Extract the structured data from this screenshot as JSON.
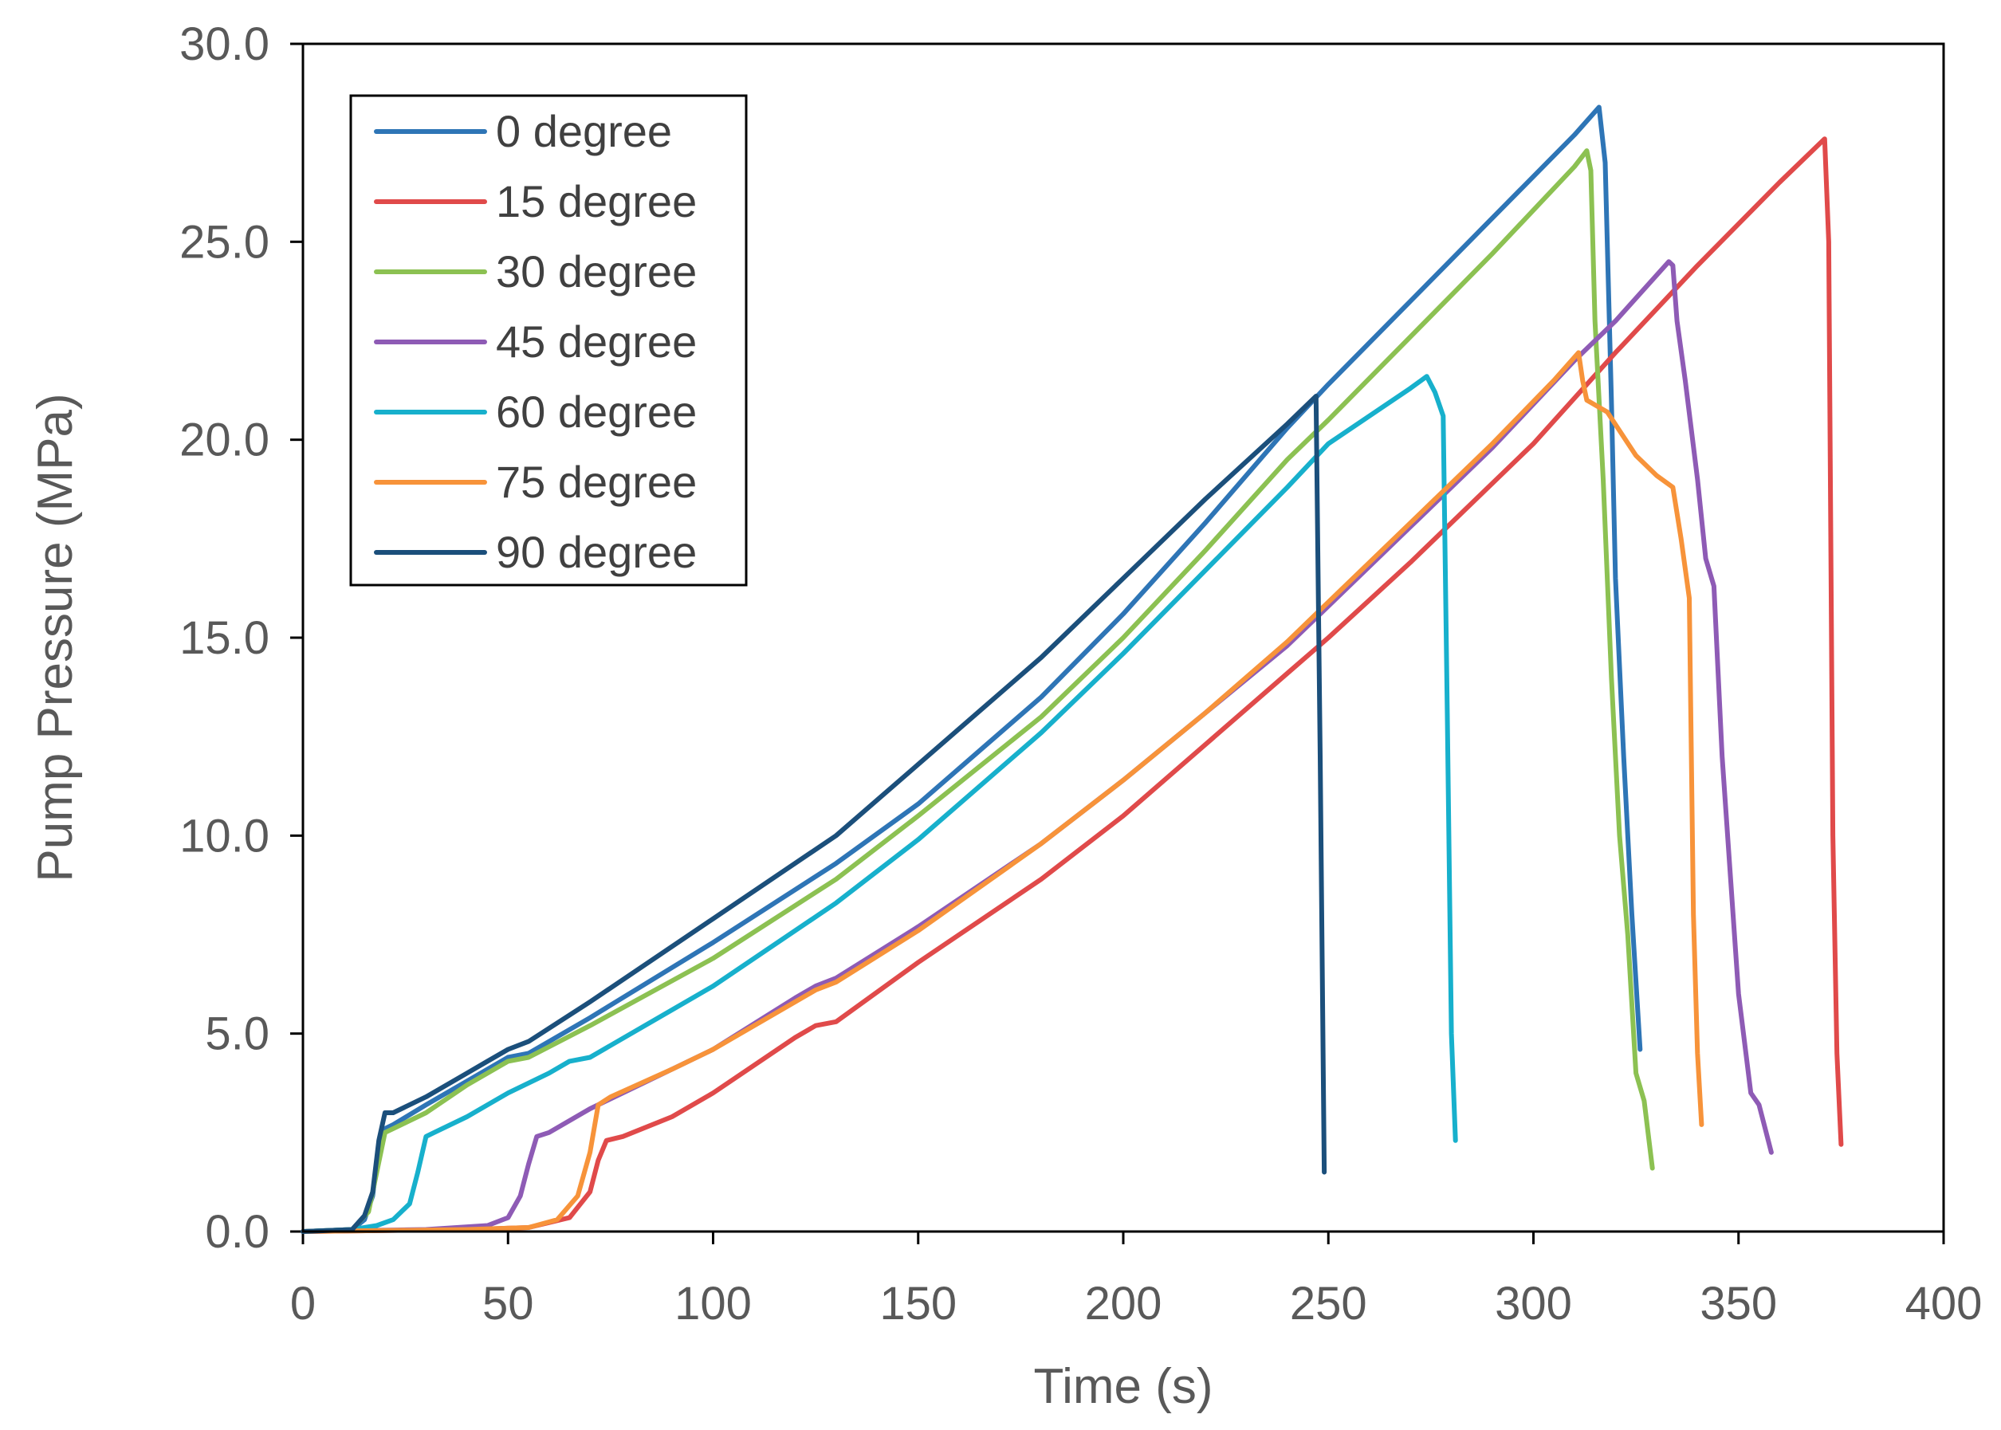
{
  "chart_data": {
    "type": "line",
    "title": "",
    "xlabel": "Time (s)",
    "ylabel": "Pump Pressure (MPa)",
    "xlim": [
      0,
      400
    ],
    "ylim": [
      0,
      30
    ],
    "xticks": [
      0,
      50,
      100,
      150,
      200,
      250,
      300,
      350,
      400
    ],
    "xtick_labels": [
      "0",
      "50",
      "100",
      "150",
      "200",
      "250",
      "300",
      "350",
      "400"
    ],
    "yticks": [
      0,
      5,
      10,
      15,
      20,
      25,
      30
    ],
    "ytick_labels": [
      "0.0",
      "5.0",
      "10.0",
      "15.0",
      "20.0",
      "25.0",
      "30.0"
    ],
    "grid": false,
    "legend_position": "top-left",
    "series": [
      {
        "name": "0 degree",
        "color": "#2E75B6",
        "points": [
          [
            0,
            0
          ],
          [
            12,
            0.05
          ],
          [
            15,
            0.3
          ],
          [
            17,
            0.9
          ],
          [
            18.5,
            2.2
          ],
          [
            20,
            2.6
          ],
          [
            22,
            2.7
          ],
          [
            30,
            3.2
          ],
          [
            40,
            3.8
          ],
          [
            50,
            4.4
          ],
          [
            55,
            4.5
          ],
          [
            70,
            5.4
          ],
          [
            100,
            7.3
          ],
          [
            130,
            9.3
          ],
          [
            150,
            10.8
          ],
          [
            180,
            13.5
          ],
          [
            200,
            15.6
          ],
          [
            220,
            17.9
          ],
          [
            240,
            20.3
          ],
          [
            250,
            21.4
          ],
          [
            270,
            23.5
          ],
          [
            290,
            25.6
          ],
          [
            310,
            27.7
          ],
          [
            316,
            28.4
          ],
          [
            317.5,
            27.0
          ],
          [
            319,
            21.0
          ],
          [
            320,
            16.5
          ],
          [
            322,
            12.0
          ],
          [
            324,
            8.0
          ],
          [
            326,
            4.6
          ]
        ]
      },
      {
        "name": "15 degree",
        "color": "#E04A4A",
        "points": [
          [
            0,
            0
          ],
          [
            40,
            0.05
          ],
          [
            55,
            0.1
          ],
          [
            65,
            0.35
          ],
          [
            70,
            1.0
          ],
          [
            72,
            1.8
          ],
          [
            74,
            2.3
          ],
          [
            78,
            2.4
          ],
          [
            90,
            2.9
          ],
          [
            100,
            3.5
          ],
          [
            120,
            4.9
          ],
          [
            125,
            5.2
          ],
          [
            130,
            5.3
          ],
          [
            150,
            6.8
          ],
          [
            180,
            8.9
          ],
          [
            200,
            10.5
          ],
          [
            220,
            12.3
          ],
          [
            240,
            14.1
          ],
          [
            250,
            15.0
          ],
          [
            270,
            16.9
          ],
          [
            300,
            19.9
          ],
          [
            320,
            22.2
          ],
          [
            340,
            24.4
          ],
          [
            360,
            26.5
          ],
          [
            371,
            27.6
          ],
          [
            372,
            25.0
          ],
          [
            373,
            10.0
          ],
          [
            374,
            4.5
          ],
          [
            375,
            2.2
          ]
        ]
      },
      {
        "name": "30 degree",
        "color": "#8CC152",
        "points": [
          [
            0,
            0
          ],
          [
            12,
            0.05
          ],
          [
            16,
            0.5
          ],
          [
            18,
            1.5
          ],
          [
            20,
            2.5
          ],
          [
            22,
            2.6
          ],
          [
            30,
            3.0
          ],
          [
            40,
            3.7
          ],
          [
            50,
            4.3
          ],
          [
            55,
            4.4
          ],
          [
            70,
            5.2
          ],
          [
            100,
            6.9
          ],
          [
            130,
            8.9
          ],
          [
            150,
            10.5
          ],
          [
            180,
            13.0
          ],
          [
            200,
            15.0
          ],
          [
            220,
            17.2
          ],
          [
            240,
            19.5
          ],
          [
            250,
            20.5
          ],
          [
            270,
            22.6
          ],
          [
            290,
            24.7
          ],
          [
            310,
            26.9
          ],
          [
            313,
            27.3
          ],
          [
            314,
            26.8
          ],
          [
            315,
            23.0
          ],
          [
            317,
            19.0
          ],
          [
            319,
            14.0
          ],
          [
            321,
            10.0
          ],
          [
            323,
            7.5
          ],
          [
            325,
            4.0
          ],
          [
            327,
            3.3
          ],
          [
            329,
            1.6
          ]
        ]
      },
      {
        "name": "45 degree",
        "color": "#8E5BB5",
        "points": [
          [
            0,
            0
          ],
          [
            30,
            0.05
          ],
          [
            45,
            0.15
          ],
          [
            50,
            0.35
          ],
          [
            53,
            0.9
          ],
          [
            55,
            1.7
          ],
          [
            57,
            2.4
          ],
          [
            60,
            2.5
          ],
          [
            70,
            3.1
          ],
          [
            80,
            3.6
          ],
          [
            100,
            4.6
          ],
          [
            120,
            5.9
          ],
          [
            125,
            6.2
          ],
          [
            130,
            6.4
          ],
          [
            150,
            7.7
          ],
          [
            180,
            9.8
          ],
          [
            200,
            11.4
          ],
          [
            220,
            13.1
          ],
          [
            240,
            14.8
          ],
          [
            250,
            15.8
          ],
          [
            270,
            17.8
          ],
          [
            290,
            19.8
          ],
          [
            310,
            22.0
          ],
          [
            313,
            22.3
          ],
          [
            320,
            23.0
          ],
          [
            333,
            24.5
          ],
          [
            334,
            24.4
          ],
          [
            335,
            23.0
          ],
          [
            337,
            21.5
          ],
          [
            340,
            19.0
          ],
          [
            342,
            17.0
          ],
          [
            344,
            16.3
          ],
          [
            346,
            12.0
          ],
          [
            348,
            9.0
          ],
          [
            350,
            6.0
          ],
          [
            353,
            3.5
          ],
          [
            355,
            3.2
          ],
          [
            358,
            2.0
          ]
        ]
      },
      {
        "name": "60 degree",
        "color": "#17B0CC",
        "points": [
          [
            0,
            0
          ],
          [
            12,
            0.05
          ],
          [
            18,
            0.15
          ],
          [
            22,
            0.3
          ],
          [
            26,
            0.7
          ],
          [
            28,
            1.5
          ],
          [
            30,
            2.4
          ],
          [
            32,
            2.5
          ],
          [
            40,
            2.9
          ],
          [
            50,
            3.5
          ],
          [
            60,
            4.0
          ],
          [
            65,
            4.3
          ],
          [
            70,
            4.4
          ],
          [
            100,
            6.2
          ],
          [
            130,
            8.3
          ],
          [
            150,
            9.9
          ],
          [
            180,
            12.6
          ],
          [
            200,
            14.6
          ],
          [
            220,
            16.7
          ],
          [
            240,
            18.8
          ],
          [
            250,
            19.9
          ],
          [
            270,
            21.3
          ],
          [
            274,
            21.6
          ],
          [
            276,
            21.2
          ],
          [
            278,
            20.6
          ],
          [
            279,
            13.0
          ],
          [
            280,
            5.0
          ],
          [
            281,
            2.3
          ]
        ]
      },
      {
        "name": "75 degree",
        "color": "#F7933A",
        "points": [
          [
            0,
            0
          ],
          [
            40,
            0.05
          ],
          [
            55,
            0.1
          ],
          [
            62,
            0.3
          ],
          [
            67,
            0.9
          ],
          [
            70,
            2.0
          ],
          [
            72,
            3.2
          ],
          [
            75,
            3.4
          ],
          [
            90,
            4.1
          ],
          [
            100,
            4.6
          ],
          [
            120,
            5.8
          ],
          [
            125,
            6.1
          ],
          [
            130,
            6.3
          ],
          [
            150,
            7.6
          ],
          [
            180,
            9.8
          ],
          [
            200,
            11.4
          ],
          [
            220,
            13.1
          ],
          [
            240,
            14.9
          ],
          [
            250,
            15.9
          ],
          [
            270,
            17.9
          ],
          [
            290,
            19.9
          ],
          [
            305,
            21.5
          ],
          [
            311,
            22.2
          ],
          [
            312,
            21.5
          ],
          [
            313,
            21.0
          ],
          [
            318,
            20.7
          ],
          [
            325,
            19.6
          ],
          [
            330,
            19.1
          ],
          [
            334,
            18.8
          ],
          [
            336,
            17.5
          ],
          [
            338,
            16.0
          ],
          [
            339,
            8.0
          ],
          [
            340,
            4.5
          ],
          [
            341,
            2.7
          ]
        ]
      },
      {
        "name": "90 degree",
        "color": "#1B4F7B",
        "points": [
          [
            0,
            0
          ],
          [
            12,
            0.05
          ],
          [
            15,
            0.4
          ],
          [
            17,
            1.0
          ],
          [
            18.5,
            2.3
          ],
          [
            20,
            3.0
          ],
          [
            22,
            3.0
          ],
          [
            30,
            3.4
          ],
          [
            40,
            4.0
          ],
          [
            45,
            4.3
          ],
          [
            50,
            4.6
          ],
          [
            55,
            4.8
          ],
          [
            70,
            5.8
          ],
          [
            100,
            7.9
          ],
          [
            130,
            10.0
          ],
          [
            150,
            11.8
          ],
          [
            180,
            14.5
          ],
          [
            200,
            16.5
          ],
          [
            220,
            18.5
          ],
          [
            240,
            20.4
          ],
          [
            247,
            21.1
          ],
          [
            248,
            12.0
          ],
          [
            249,
            1.5
          ]
        ]
      }
    ]
  }
}
